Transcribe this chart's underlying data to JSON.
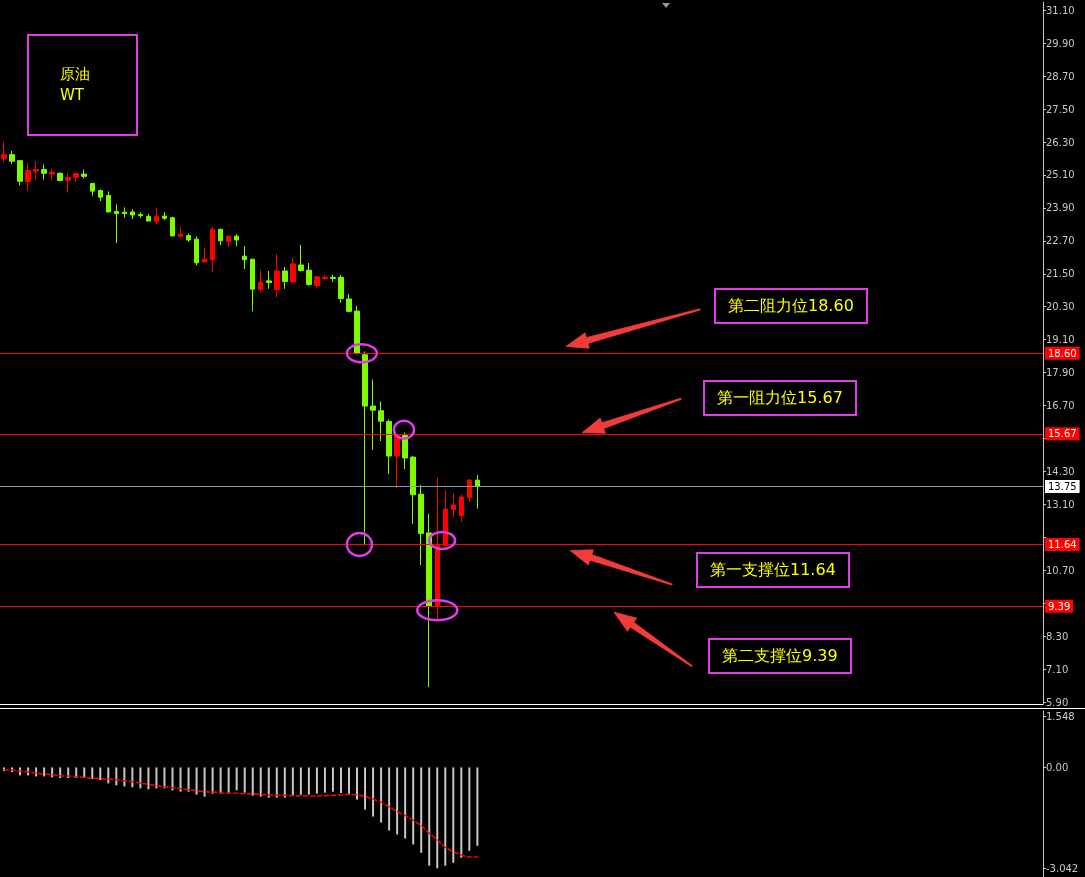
{
  "chart_data": [
    {
      "type": "candlestick",
      "title": "原油",
      "subtitle": "WT",
      "categories": [
        null,
        null,
        null,
        null,
        null,
        null,
        null,
        null,
        null,
        null,
        null,
        null,
        null,
        null,
        null,
        null,
        null,
        null,
        null,
        null,
        null,
        null,
        null,
        null,
        null,
        null,
        null,
        null,
        null,
        null,
        null,
        null,
        null,
        null,
        null,
        null,
        null,
        null,
        null,
        null,
        null,
        null,
        null,
        null,
        null,
        null,
        null,
        null,
        null,
        null,
        null,
        null,
        null,
        null,
        null,
        null,
        null,
        null,
        null,
        null,
        null,
        null,
        null,
        null,
        null,
        null,
        null,
        null,
        null,
        null,
        null,
        null,
        null,
        null,
        null,
        null,
        null,
        null,
        null,
        null,
        null,
        null,
        null,
        null,
        null,
        null,
        null,
        null,
        null,
        null,
        null,
        null,
        null,
        null,
        null,
        null,
        null,
        null,
        null,
        null,
        null,
        null,
        null,
        null,
        null,
        null,
        null,
        null,
        null,
        null,
        null,
        null,
        null,
        null,
        null,
        null,
        null,
        null,
        null,
        null,
        null,
        null,
        null,
        null,
        null,
        null,
        null,
        null,
        null,
        null
      ],
      "ohlc": [
        [
          25.69,
          26.31,
          25.56,
          25.84
        ],
        [
          25.84,
          25.98,
          25.5,
          25.6
        ],
        [
          25.62,
          25.62,
          24.72,
          24.87
        ],
        [
          24.86,
          25.53,
          24.53,
          25.26
        ],
        [
          25.24,
          25.59,
          24.93,
          25.3
        ],
        [
          25.3,
          25.48,
          24.93,
          25.16
        ],
        [
          25.13,
          25.34,
          24.9,
          25.2
        ],
        [
          25.16,
          25.19,
          24.86,
          24.9
        ],
        [
          24.91,
          25.16,
          24.46,
          25.01
        ],
        [
          25.01,
          25.15,
          24.86,
          25.15
        ],
        [
          25.13,
          25.3,
          24.97,
          25.05
        ],
        [
          24.79,
          24.79,
          24.35,
          24.51
        ],
        [
          24.53,
          24.57,
          24.15,
          24.29
        ],
        [
          24.35,
          24.5,
          23.75,
          23.75
        ],
        [
          23.77,
          24.03,
          22.62,
          23.69
        ],
        [
          23.74,
          23.92,
          23.55,
          23.69
        ],
        [
          23.75,
          23.85,
          23.49,
          23.64
        ],
        [
          23.66,
          23.74,
          23.53,
          23.62
        ],
        [
          23.59,
          23.69,
          23.42,
          23.42
        ],
        [
          23.41,
          23.88,
          23.31,
          23.59
        ],
        [
          23.6,
          23.74,
          23.45,
          23.52
        ],
        [
          23.54,
          23.58,
          22.88,
          22.88
        ],
        [
          22.87,
          23.23,
          22.82,
          22.94
        ],
        [
          22.89,
          22.97,
          22.66,
          22.73
        ],
        [
          22.76,
          22.86,
          21.81,
          21.9
        ],
        [
          21.93,
          22.44,
          21.92,
          22.03
        ],
        [
          22.01,
          23.19,
          21.57,
          23.12
        ],
        [
          23.12,
          23.12,
          22.54,
          22.7
        ],
        [
          22.68,
          22.89,
          22.47,
          22.87
        ],
        [
          22.87,
          22.94,
          22.5,
          22.73
        ],
        [
          22.14,
          22.51,
          21.67,
          22.01
        ],
        [
          22.03,
          22.03,
          20.13,
          20.94
        ],
        [
          20.93,
          21.64,
          20.82,
          21.19
        ],
        [
          21.24,
          21.6,
          20.95,
          21.18
        ],
        [
          20.93,
          22.22,
          20.64,
          21.6
        ],
        [
          21.6,
          21.75,
          20.95,
          21.22
        ],
        [
          21.2,
          22.07,
          21.16,
          21.86
        ],
        [
          21.82,
          22.55,
          21.58,
          21.62
        ],
        [
          21.63,
          21.89,
          21.06,
          21.11
        ],
        [
          21.07,
          21.42,
          20.96,
          21.39
        ],
        [
          21.33,
          21.46,
          21.25,
          21.37
        ],
        [
          21.37,
          21.46,
          21.2,
          21.33
        ],
        [
          21.37,
          21.46,
          20.45,
          20.6
        ],
        [
          20.58,
          20.77,
          20.09,
          20.13
        ],
        [
          20.14,
          20.33,
          18.57,
          18.59
        ],
        [
          18.55,
          18.67,
          11.6,
          16.68
        ],
        [
          16.68,
          17.65,
          15.08,
          16.53
        ],
        [
          16.51,
          16.85,
          15.41,
          16.13
        ],
        [
          16.12,
          16.19,
          14.2,
          14.86
        ],
        [
          14.86,
          15.65,
          13.68,
          15.65
        ],
        [
          15.61,
          15.71,
          14.38,
          14.79
        ],
        [
          14.82,
          14.86,
          12.39,
          13.45
        ],
        [
          13.47,
          13.8,
          10.88,
          12.04
        ],
        [
          12.06,
          12.75,
          6.44,
          9.4
        ],
        [
          9.4,
          14.09,
          8.94,
          11.6
        ],
        [
          11.6,
          13.62,
          11.6,
          12.93
        ],
        [
          12.91,
          13.51,
          12.64,
          13.08
        ],
        [
          12.69,
          13.47,
          12.46,
          13.37
        ],
        [
          13.34,
          14.02,
          13.2,
          13.98
        ],
        [
          13.98,
          14.16,
          12.94,
          13.75
        ],
        null,
        null,
        null,
        null,
        null,
        null,
        null,
        null,
        null,
        null,
        null,
        null,
        null,
        null,
        null,
        null,
        null,
        null,
        null,
        null,
        null,
        null,
        null,
        null,
        null,
        null,
        null,
        null,
        null,
        null,
        null,
        null,
        null,
        null,
        null,
        null,
        null,
        null,
        null,
        null,
        null,
        null,
        null,
        null,
        null,
        null,
        null,
        null,
        null,
        null,
        null,
        null,
        null,
        null,
        null,
        null,
        null,
        null,
        null,
        null,
        null,
        null,
        null,
        null,
        null,
        null,
        null,
        null,
        null,
        null
      ],
      "colors": [
        "#ff0000",
        "#7cfc00",
        "#7cfc00",
        "#ff0000",
        "#ff0000",
        "#7cfc00",
        "#ff0000",
        "#7cfc00",
        "#ff0000",
        "#ff0000",
        "#7cfc00",
        "#7cfc00",
        "#7cfc00",
        "#7cfc00",
        "#7cfc00",
        "#7cfc00",
        "#7cfc00",
        "#7cfc00",
        "#7cfc00",
        "#ff0000",
        "#7cfc00",
        "#7cfc00",
        "#ff0000",
        "#7cfc00",
        "#7cfc00",
        "#ff0000",
        "#ff0000",
        "#7cfc00",
        "#ff0000",
        "#7cfc00",
        "#7cfc00",
        "#7cfc00",
        "#ff0000",
        "#7cfc00",
        "#ff0000",
        "#7cfc00",
        "#ff0000",
        "#7cfc00",
        "#7cfc00",
        "#ff0000",
        "#ff0000",
        "#7cfc00",
        "#7cfc00",
        "#7cfc00",
        "#7cfc00",
        "#7cfc00",
        "#7cfc00",
        "#7cfc00",
        "#7cfc00",
        "#ff0000",
        "#7cfc00",
        "#7cfc00",
        "#7cfc00",
        "#7cfc00",
        "#ff0000",
        "#ff0000",
        "#ff0000",
        "#ff0000",
        "#ff0000",
        "#7cfc00",
        null,
        null,
        null,
        null,
        null,
        null,
        null,
        null,
        null,
        null,
        null,
        null,
        null,
        null,
        null,
        null,
        null,
        null,
        null,
        null,
        null,
        null,
        null,
        null,
        null,
        null,
        null,
        null,
        null,
        null,
        null,
        null,
        null,
        null,
        null,
        null,
        null,
        null,
        null,
        null,
        null,
        null,
        null,
        null,
        null,
        null,
        null,
        null,
        null,
        null,
        null,
        null,
        null,
        null,
        null,
        null,
        null,
        null,
        null,
        null,
        null,
        null,
        null,
        null,
        null,
        null,
        null,
        null,
        null,
        null
      ],
      "ylim": [
        5.83,
        31.4
      ],
      "yticks": [
        {
          "value": 5.9,
          "label": "5.90"
        },
        {
          "value": 7.1,
          "label": "7.10"
        },
        {
          "value": 8.3,
          "label": "8.30"
        },
        {
          "value": 9.5,
          "label": null
        },
        {
          "value": 10.7,
          "label": "10.70"
        },
        {
          "value": 11.9,
          "label": null
        },
        {
          "value": 13.1,
          "label": "13.10"
        },
        {
          "value": 14.3,
          "label": "14.30"
        },
        {
          "value": 15.5,
          "label": null
        },
        {
          "value": 16.7,
          "label": "16.70"
        },
        {
          "value": 17.9,
          "label": "17.90"
        },
        {
          "value": 19.1,
          "label": "19.10"
        },
        {
          "value": 20.3,
          "label": "20.30"
        },
        {
          "value": 21.5,
          "label": "21.50"
        },
        {
          "value": 22.7,
          "label": "22.70"
        },
        {
          "value": 23.9,
          "label": "23.90"
        },
        {
          "value": 25.1,
          "label": "25.10"
        },
        {
          "value": 26.3,
          "label": "26.30"
        },
        {
          "value": 27.5,
          "label": "27.50"
        },
        {
          "value": 28.7,
          "label": "28.70"
        },
        {
          "value": 29.9,
          "label": "29.90"
        },
        {
          "value": 31.1,
          "label": "31.10"
        }
      ],
      "tick_labels": "y",
      "ref_lines": [
        {
          "axis": "y",
          "value": 18.6,
          "label": "18.60",
          "color": "#ff0000"
        },
        {
          "axis": "y",
          "value": 15.67,
          "label": "15.67",
          "color": "#ff0000"
        },
        {
          "axis": "y",
          "value": 13.75,
          "label": "13.75",
          "color": "#8a9ab0"
        },
        {
          "axis": "y",
          "value": 11.64,
          "label": "11.64",
          "color": "#ff0000"
        },
        {
          "axis": "y",
          "value": 9.39,
          "label": "9.39",
          "color": "#ff0000"
        }
      ],
      "annotations": [
        {
          "text": "第二阻力位18.60",
          "y": 18.6
        },
        {
          "text": "第一阻力位15.67",
          "y": 15.67
        },
        {
          "text": "第一支撑位11.64",
          "y": 11.64
        },
        {
          "text": "第二支撑位9.39",
          "y": 9.39
        }
      ]
    },
    {
      "type": "bar",
      "categories": [
        null,
        null,
        null,
        null,
        null,
        null,
        null,
        null,
        null,
        null,
        null,
        null,
        null,
        null,
        null,
        null,
        null,
        null,
        null,
        null,
        null,
        null,
        null,
        null,
        null,
        null,
        null,
        null,
        null,
        null,
        null,
        null,
        null,
        null,
        null,
        null,
        null,
        null,
        null,
        null,
        null,
        null,
        null,
        null,
        null,
        null,
        null,
        null,
        null,
        null,
        null,
        null,
        null,
        null,
        null,
        null,
        null,
        null,
        null,
        null,
        null,
        null,
        null,
        null,
        null,
        null,
        null,
        null,
        null,
        null,
        null,
        null,
        null,
        null,
        null,
        null,
        null,
        null,
        null,
        null,
        null,
        null,
        null,
        null,
        null,
        null,
        null,
        null,
        null,
        null,
        null,
        null,
        null,
        null,
        null,
        null,
        null,
        null,
        null,
        null,
        null,
        null,
        null,
        null,
        null,
        null,
        null,
        null,
        null,
        null,
        null,
        null,
        null,
        null,
        null,
        null,
        null,
        null,
        null,
        null,
        null,
        null,
        null,
        null,
        null,
        null,
        null,
        null,
        null,
        null
      ],
      "series": [
        {
          "color": "#c8c8c8",
          "values": [
            -0.11,
            -0.14,
            -0.24,
            -0.24,
            -0.27,
            -0.27,
            -0.3,
            -0.32,
            -0.32,
            -0.32,
            -0.32,
            -0.35,
            -0.38,
            -0.48,
            -0.54,
            -0.57,
            -0.6,
            -0.63,
            -0.66,
            -0.63,
            -0.63,
            -0.69,
            -0.73,
            -0.73,
            -0.82,
            -0.88,
            -0.79,
            -0.79,
            -0.76,
            -0.69,
            -0.76,
            -0.85,
            -0.88,
            -0.91,
            -0.91,
            -0.91,
            -0.85,
            -0.82,
            -0.82,
            -0.79,
            -0.76,
            -0.73,
            -0.77,
            -0.82,
            -0.97,
            -1.27,
            -1.48,
            -1.66,
            -1.9,
            -2.02,
            -2.14,
            -2.32,
            -2.57,
            -2.96,
            -3.04,
            -2.96,
            -2.87,
            -2.72,
            -2.51,
            -2.36,
            null,
            null,
            null,
            null,
            null,
            null,
            null,
            null,
            null,
            null,
            null,
            null,
            null,
            null,
            null,
            null,
            null,
            null,
            null,
            null,
            null,
            null,
            null,
            null,
            null,
            null,
            null,
            null,
            null,
            null,
            null,
            null,
            null,
            null,
            null,
            null,
            null,
            null,
            null,
            null,
            null,
            null,
            null,
            null,
            null,
            null,
            null,
            null,
            null,
            null,
            null,
            null,
            null,
            null,
            null,
            null,
            null,
            null,
            null,
            null,
            null,
            null,
            null,
            null,
            null,
            null,
            null,
            null,
            null,
            null
          ]
        },
        {
          "type": "line",
          "color": "#ff0000",
          "line_style": "dashed",
          "marker": "none",
          "values": [
            -0.07,
            -0.08,
            -0.11,
            -0.14,
            -0.17,
            -0.2,
            -0.22,
            -0.25,
            -0.26,
            -0.28,
            -0.3,
            -0.32,
            -0.34,
            -0.35,
            -0.37,
            -0.4,
            -0.43,
            -0.47,
            -0.51,
            -0.55,
            -0.58,
            -0.61,
            -0.64,
            -0.67,
            -0.7,
            -0.73,
            -0.74,
            -0.76,
            -0.78,
            -0.78,
            -0.79,
            -0.8,
            -0.81,
            -0.83,
            -0.83,
            -0.84,
            -0.85,
            -0.85,
            -0.86,
            -0.86,
            -0.85,
            -0.84,
            -0.83,
            -0.81,
            -0.82,
            -0.87,
            -0.95,
            -1.05,
            -1.19,
            -1.33,
            -1.45,
            -1.59,
            -1.75,
            -1.98,
            -2.18,
            -2.41,
            -2.54,
            -2.64,
            -2.7,
            -2.7,
            null,
            null,
            null,
            null,
            null,
            null,
            null,
            null,
            null,
            null,
            null,
            null,
            null,
            null,
            null,
            null,
            null,
            null,
            null,
            null,
            null,
            null,
            null,
            null,
            null,
            null,
            null,
            null,
            null,
            null,
            null,
            null,
            null,
            null,
            null,
            null,
            null,
            null,
            null,
            null,
            null,
            null,
            null,
            null,
            null,
            null,
            null,
            null,
            null,
            null,
            null,
            null,
            null,
            null,
            null,
            null,
            null,
            null,
            null,
            null,
            null,
            null,
            null,
            null,
            null,
            null,
            null,
            null,
            null,
            null
          ]
        }
      ],
      "ylim": [
        -3.3,
        1.7
      ],
      "yticks": [
        -3.042,
        {
          "value": 0,
          "label": "0.00"
        },
        1.548
      ],
      "tick_labels": "y"
    }
  ]
}
